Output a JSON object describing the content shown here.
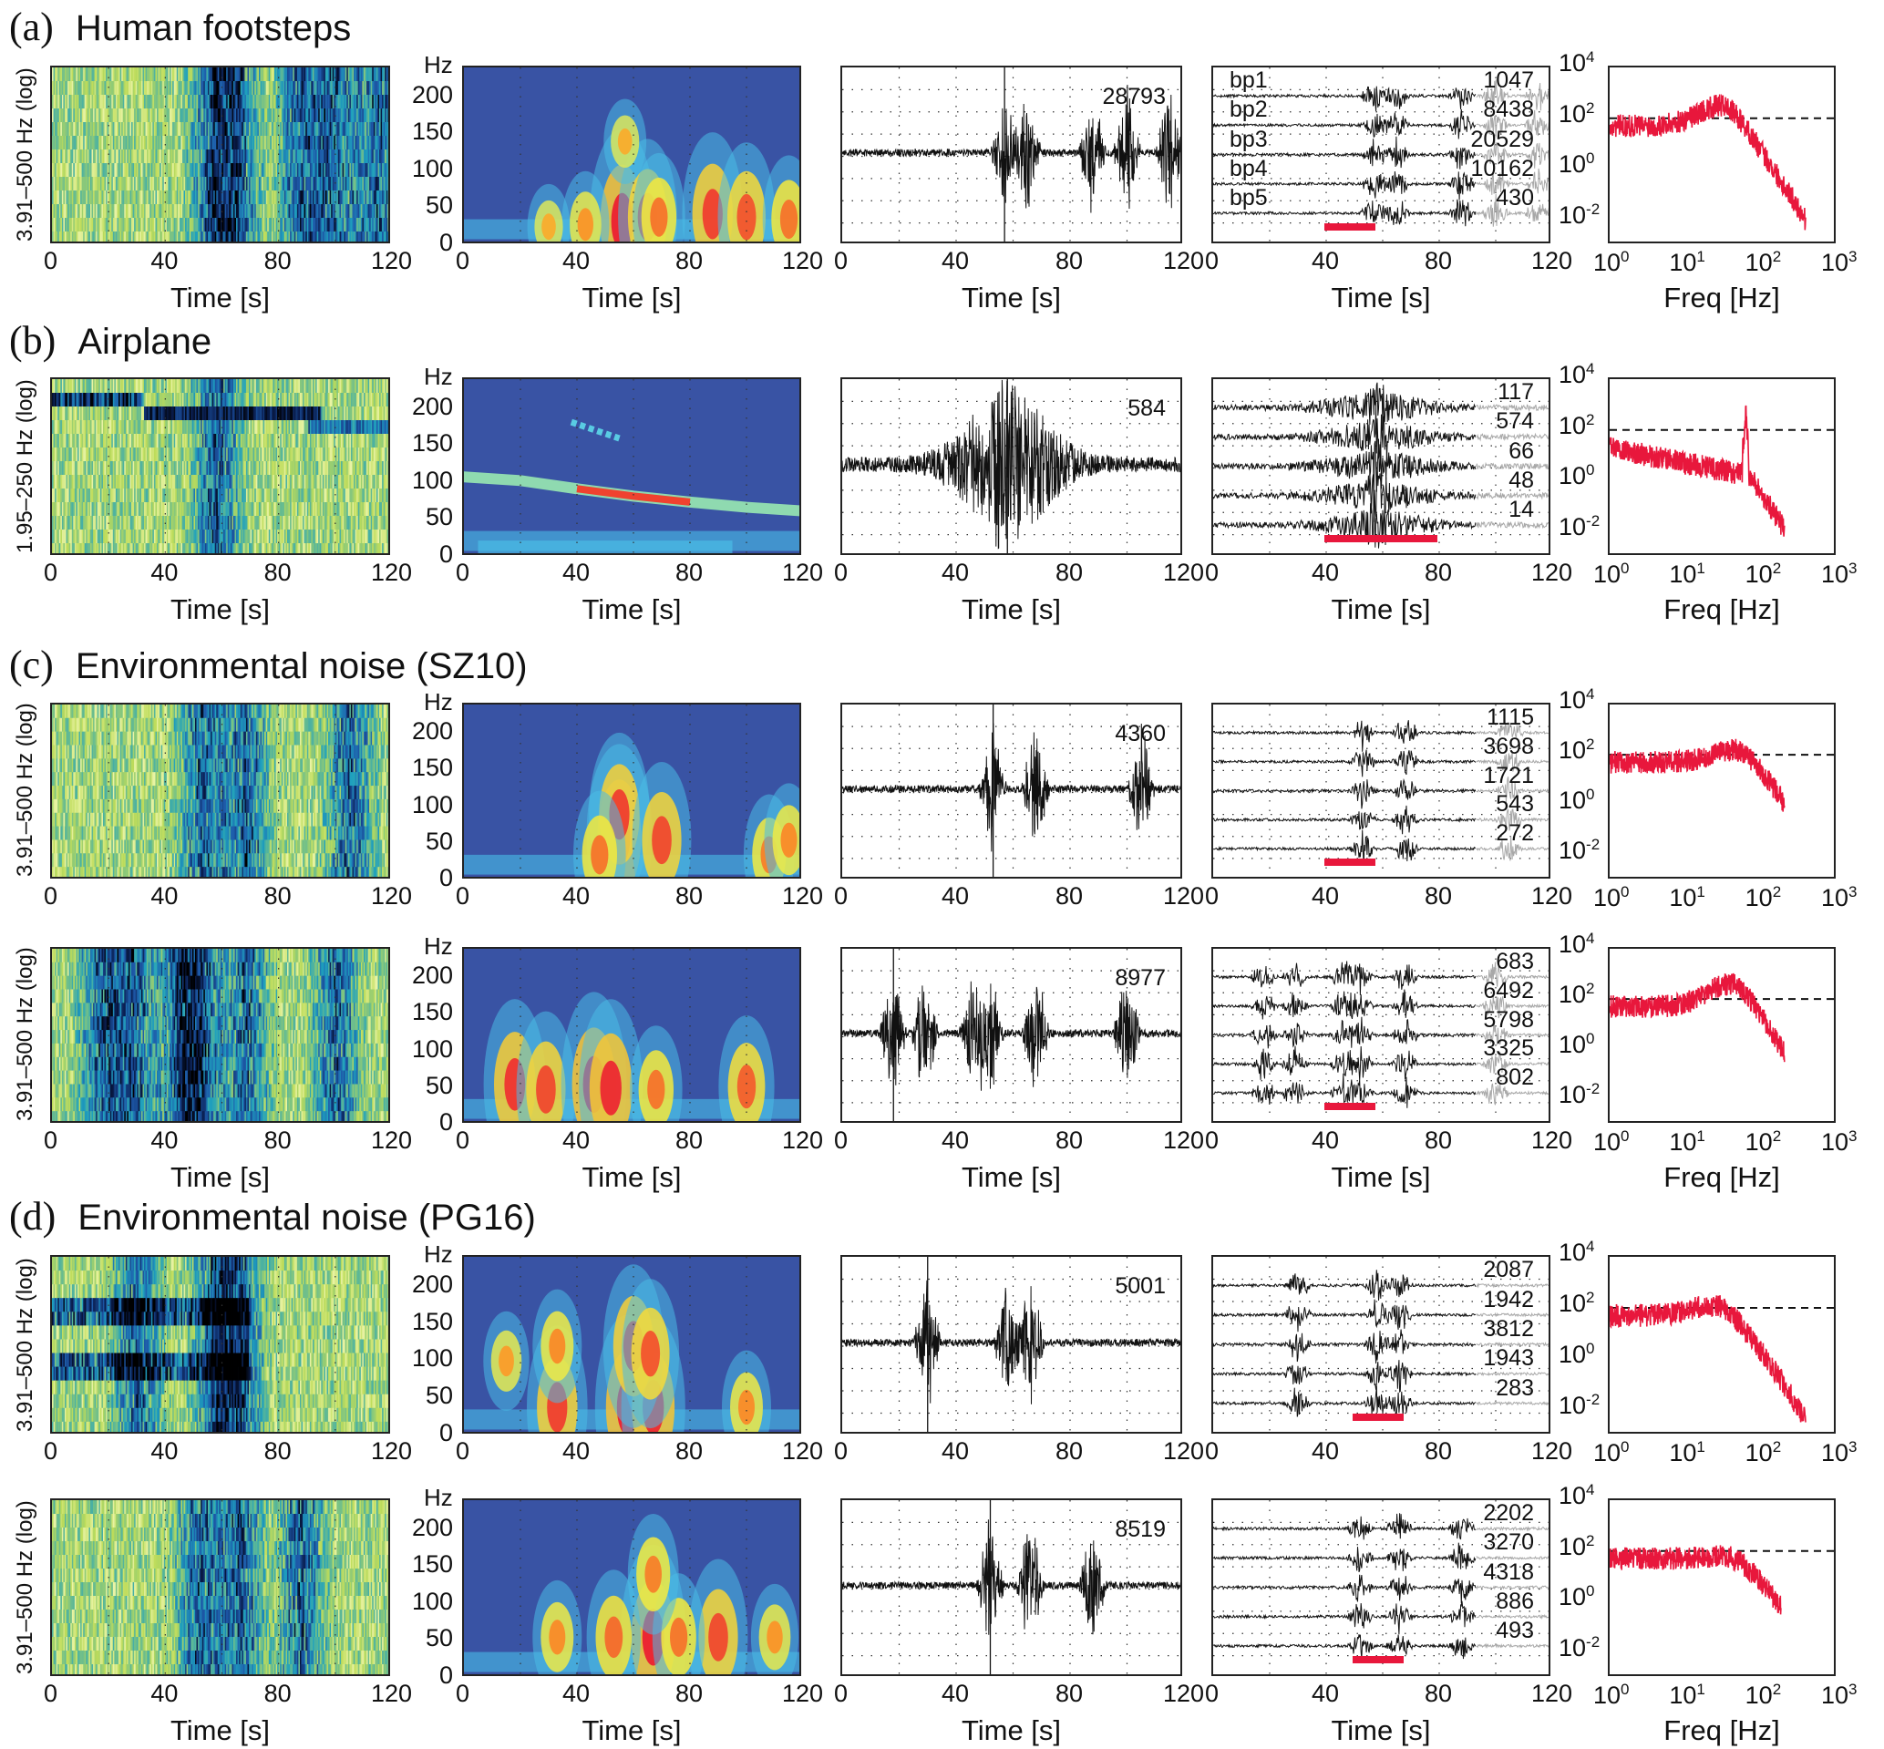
{
  "chart_data": {
    "type": "heatmap",
    "description": "Multi-panel seismic/ambient event figure: per event row, 5 panels (log-band energy map, spectrogram, waveform, band-pass traces, spectrum).",
    "common": {
      "time_xlabel": "Time [s]",
      "time_ticks": [
        "0",
        "40",
        "80",
        "120"
      ],
      "time_range": [
        0,
        120
      ],
      "spec_ylabel": "Hz",
      "spec_yticks": [
        "0",
        "50",
        "100",
        "150",
        "200"
      ],
      "spec_yrange": [
        0,
        240
      ],
      "freq_xlabel": "Freq [Hz]",
      "freq_xticks": [
        "10^0",
        "10^1",
        "10^2",
        "10^3"
      ],
      "freq_xrange": [
        1,
        1000
      ],
      "psd_yticks": [
        "10^-2",
        "10^0",
        "10^2",
        "10^4"
      ],
      "psd_yrange": [
        0.001,
        10000
      ],
      "psd_threshold": 100,
      "bp_names": [
        "bp1",
        "bp2",
        "bp3",
        "bp4",
        "bp5"
      ],
      "colors": {
        "trace": "#111111",
        "trace_gray": "#a8a8a8",
        "spectrum": "#e8173c",
        "redbar": "#e8173c",
        "spec_bg": "#3953a4"
      }
    },
    "rows": [
      {
        "id": "a",
        "tag": "(a)",
        "title": "Human footsteps",
        "energy_ylabel": "3.91–500 Hz (log)",
        "waveform_count": "28793",
        "bp_counts": [
          "1047",
          "8438",
          "20529",
          "10162",
          "430"
        ],
        "bp_show_names": true,
        "window_s": [
          40,
          58
        ],
        "spec_blobs": [
          [
            56,
            32,
            1.0
          ],
          [
            65,
            38,
            0.8
          ],
          [
            69,
            38,
            0.6
          ],
          [
            88,
            42,
            0.85
          ],
          [
            100,
            38,
            0.75
          ],
          [
            115,
            35,
            0.6
          ],
          [
            43,
            28,
            0.45
          ],
          [
            30,
            25,
            0.3
          ],
          [
            57,
            140,
            0.3
          ]
        ],
        "events_s": [
          57,
          65,
          88,
          100,
          115
        ]
      },
      {
        "id": "b",
        "tag": "(b)",
        "title": "Airplane",
        "energy_ylabel": "1.95–250 Hz (log)",
        "waveform_count": "584",
        "bp_counts": [
          "117",
          "574",
          "66",
          "48",
          "14"
        ],
        "bp_show_names": false,
        "window_s": [
          40,
          80
        ],
        "doppler_line_hz": [
          [
            0,
            108
          ],
          [
            20,
            103
          ],
          [
            40,
            92
          ],
          [
            60,
            82
          ],
          [
            80,
            74
          ],
          [
            100,
            67
          ],
          [
            120,
            62
          ]
        ],
        "events_s": [
          58
        ]
      },
      {
        "id": "c1",
        "tag": "(c)",
        "title": "Environmental noise (SZ10)",
        "energy_ylabel": "3.91–500 Hz (log)",
        "waveform_count": "4360",
        "bp_counts": [
          "1115",
          "3698",
          "1721",
          "543",
          "272"
        ],
        "bp_show_names": false,
        "window_s": [
          40,
          58
        ],
        "spec_blobs": [
          [
            55,
            60,
            1.0
          ],
          [
            55,
            90,
            0.85
          ],
          [
            70,
            55,
            0.8
          ],
          [
            48,
            35,
            0.6
          ],
          [
            108,
            35,
            0.55
          ],
          [
            115,
            55,
            0.5
          ]
        ],
        "events_s": [
          53,
          68,
          105
        ]
      },
      {
        "id": "c2",
        "tag": "",
        "title": "",
        "energy_ylabel": "3.91–500 Hz (log)",
        "waveform_count": "8977",
        "bp_counts": [
          "683",
          "6492",
          "5798",
          "3325",
          "802"
        ],
        "bp_show_names": false,
        "window_s": [
          40,
          58
        ],
        "spec_blobs": [
          [
            18,
            55,
            0.9
          ],
          [
            29,
            48,
            0.8
          ],
          [
            46,
            55,
            1.0
          ],
          [
            52,
            50,
            0.95
          ],
          [
            68,
            48,
            0.6
          ],
          [
            100,
            52,
            0.7
          ]
        ],
        "events_s": [
          18,
          29,
          46,
          52,
          68,
          100
        ]
      },
      {
        "id": "d1",
        "tag": "(d)",
        "title": "Environmental noise (PG16)",
        "energy_ylabel": "3.91–500 Hz (log)",
        "waveform_count": "5001",
        "bp_counts": [
          "2087",
          "1942",
          "3812",
          "1943",
          "283"
        ],
        "bp_show_names": false,
        "window_s": [
          50,
          68
        ],
        "spec_blobs": [
          [
            33,
            38,
            0.85
          ],
          [
            58,
            38,
            1.0
          ],
          [
            67,
            38,
            0.95
          ],
          [
            60,
            120,
            0.85
          ],
          [
            66,
            110,
            0.75
          ],
          [
            33,
            120,
            0.5
          ],
          [
            15,
            100,
            0.4
          ],
          [
            100,
            38,
            0.5
          ]
        ],
        "events_s": [
          30,
          58,
          66
        ]
      },
      {
        "id": "d2",
        "tag": "",
        "title": "",
        "energy_ylabel": "3.91–500 Hz (log)",
        "waveform_count": "8519",
        "bp_counts": [
          "2202",
          "3270",
          "4318",
          "886",
          "493"
        ],
        "bp_show_names": false,
        "window_s": [
          50,
          68
        ],
        "spec_blobs": [
          [
            67,
            55,
            1.0
          ],
          [
            90,
            55,
            0.8
          ],
          [
            53,
            55,
            0.65
          ],
          [
            76,
            55,
            0.6
          ],
          [
            33,
            55,
            0.5
          ],
          [
            67,
            140,
            0.55
          ],
          [
            110,
            55,
            0.45
          ]
        ],
        "events_s": [
          52,
          66,
          88
        ]
      }
    ]
  }
}
